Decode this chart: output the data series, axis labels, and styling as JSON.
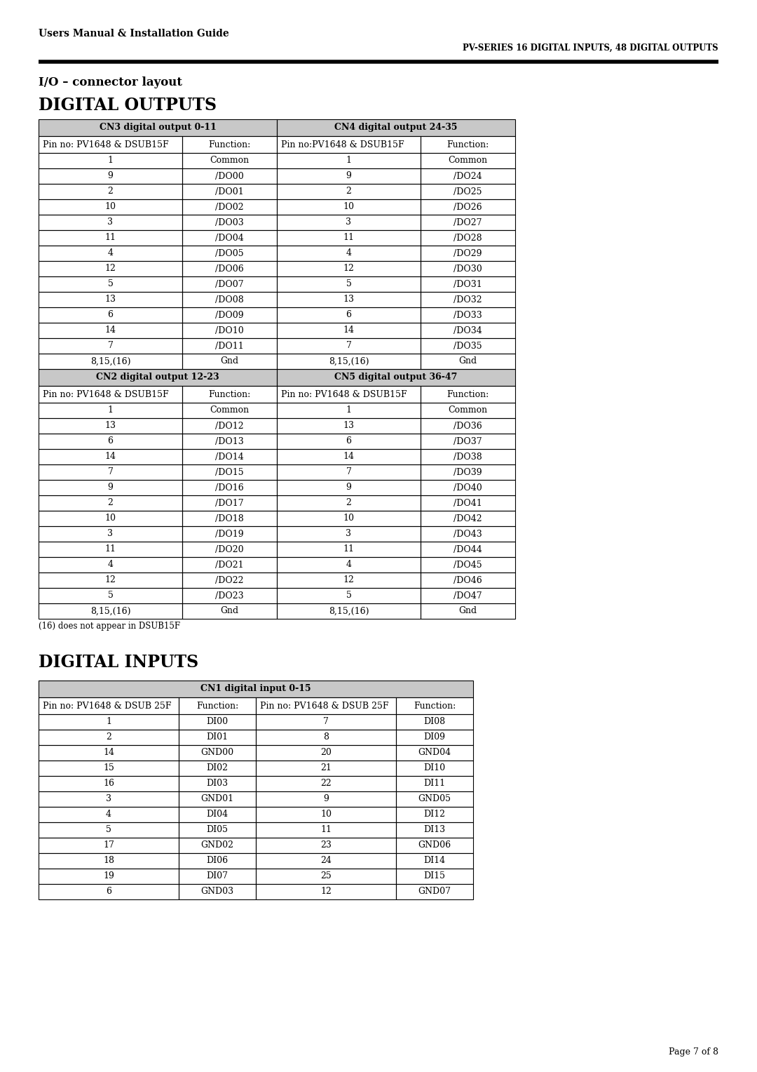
{
  "page_title_left": "Users Manual & Installation Guide",
  "page_title_right": "PV-SERIES 16 DIGITAL INPUTS, 48 DIGITAL OUTPUTS",
  "section_title1": "I/O – connector layout",
  "section_title2": "DIGITAL OUTPUTS",
  "section_title3": "DIGITAL INPUTS",
  "footnote": "(16) does not appear in DSUB15F",
  "page_number": "Page 7 of 8",
  "header_bg": "#c8c8c8",
  "table_border": "#000000",
  "bg_color": "#ffffff",
  "cn3_header": "CN3 digital output 0-11",
  "cn4_header": "CN4 digital output 24-35",
  "cn3_subheader": [
    "Pin no: PV1648 & DSUB15F",
    "Function:"
  ],
  "cn4_subheader": [
    "Pin no:PV1648 & DSUB15F",
    "Function:"
  ],
  "cn3_rows": [
    [
      "1",
      "Common"
    ],
    [
      "9",
      "/DO00"
    ],
    [
      "2",
      "/DO01"
    ],
    [
      "10",
      "/DO02"
    ],
    [
      "3",
      "/DO03"
    ],
    [
      "11",
      "/DO04"
    ],
    [
      "4",
      "/DO05"
    ],
    [
      "12",
      "/DO06"
    ],
    [
      "5",
      "/DO07"
    ],
    [
      "13",
      "/DO08"
    ],
    [
      "6",
      "/DO09"
    ],
    [
      "14",
      "/DO10"
    ],
    [
      "7",
      "/DO11"
    ],
    [
      "8,15,(16)",
      "Gnd"
    ]
  ],
  "cn4_rows": [
    [
      "1",
      "Common"
    ],
    [
      "9",
      "/DO24"
    ],
    [
      "2",
      "/DO25"
    ],
    [
      "10",
      "/DO26"
    ],
    [
      "3",
      "/DO27"
    ],
    [
      "11",
      "/DO28"
    ],
    [
      "4",
      "/DO29"
    ],
    [
      "12",
      "/DO30"
    ],
    [
      "5",
      "/DO31"
    ],
    [
      "13",
      "/DO32"
    ],
    [
      "6",
      "/DO33"
    ],
    [
      "14",
      "/DO34"
    ],
    [
      "7",
      "/DO35"
    ],
    [
      "8,15,(16)",
      "Gnd"
    ]
  ],
  "cn2_header": "CN2 digital output 12-23",
  "cn5_header": "CN5 digital output 36-47",
  "cn2_subheader": [
    "Pin no: PV1648 & DSUB15F",
    "Function:"
  ],
  "cn5_subheader": [
    "Pin no: PV1648 & DSUB15F",
    "Function:"
  ],
  "cn2_rows": [
    [
      "1",
      "Common"
    ],
    [
      "13",
      "/DO12"
    ],
    [
      "6",
      "/DO13"
    ],
    [
      "14",
      "/DO14"
    ],
    [
      "7",
      "/DO15"
    ],
    [
      "9",
      "/DO16"
    ],
    [
      "2",
      "/DO17"
    ],
    [
      "10",
      "/DO18"
    ],
    [
      "3",
      "/DO19"
    ],
    [
      "11",
      "/DO20"
    ],
    [
      "4",
      "/DO21"
    ],
    [
      "12",
      "/DO22"
    ],
    [
      "5",
      "/DO23"
    ],
    [
      "8,15,(16)",
      "Gnd"
    ]
  ],
  "cn5_rows": [
    [
      "1",
      "Common"
    ],
    [
      "13",
      "/DO36"
    ],
    [
      "6",
      "/DO37"
    ],
    [
      "14",
      "/DO38"
    ],
    [
      "7",
      "/DO39"
    ],
    [
      "9",
      "/DO40"
    ],
    [
      "2",
      "/DO41"
    ],
    [
      "10",
      "/DO42"
    ],
    [
      "3",
      "/DO43"
    ],
    [
      "11",
      "/DO44"
    ],
    [
      "4",
      "/DO45"
    ],
    [
      "12",
      "/DO46"
    ],
    [
      "5",
      "/DO47"
    ],
    [
      "8,15,(16)",
      "Gnd"
    ]
  ],
  "cn1_header": "CN1 digital input 0-15",
  "cn1_subheader": [
    "Pin no: PV1648 & DSUB 25F",
    "Function:",
    "Pin no: PV1648 & DSUB 25F",
    "Function:"
  ],
  "cn1_rows": [
    [
      "1",
      "DI00",
      "7",
      "DI08"
    ],
    [
      "2",
      "DI01",
      "8",
      "DI09"
    ],
    [
      "14",
      "GND00",
      "20",
      "GND04"
    ],
    [
      "15",
      "DI02",
      "21",
      "DI10"
    ],
    [
      "16",
      "DI03",
      "22",
      "DI11"
    ],
    [
      "3",
      "GND01",
      "9",
      "GND05"
    ],
    [
      "4",
      "DI04",
      "10",
      "DI12"
    ],
    [
      "5",
      "DI05",
      "11",
      "DI13"
    ],
    [
      "17",
      "GND02",
      "23",
      "GND06"
    ],
    [
      "18",
      "DI06",
      "24",
      "DI14"
    ],
    [
      "19",
      "DI07",
      "25",
      "DI15"
    ],
    [
      "6",
      "GND03",
      "12",
      "GND07"
    ]
  ]
}
